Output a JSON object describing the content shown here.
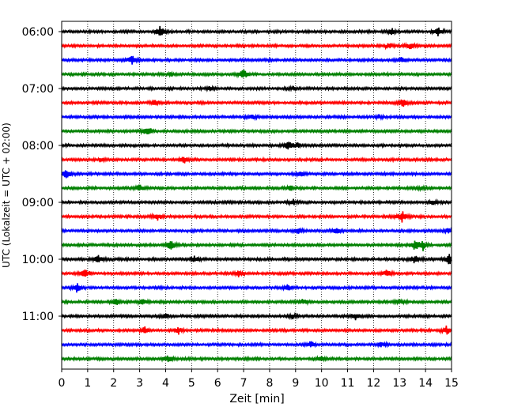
{
  "chart_data": {
    "type": "line",
    "title": "",
    "xlabel": "Zeit  [min]",
    "ylabel": "UTC (Lokalzeit = UTC + 02:00)",
    "xlim": [
      0,
      15
    ],
    "x_ticks": [
      0,
      1,
      2,
      3,
      4,
      5,
      6,
      7,
      8,
      9,
      10,
      11,
      12,
      13,
      14,
      15
    ],
    "y_tick_labels": [
      "06:00",
      "07:00",
      "08:00",
      "09:00",
      "10:00",
      "11:00"
    ],
    "grid_vertical": true,
    "grid_style": "dotted",
    "trace_interval_minutes": 15,
    "trace_color_cycle": [
      "#000000",
      "#ff0000",
      "#0000ff",
      "#008000"
    ],
    "series": [
      {
        "start": "06:00",
        "color": "#000000",
        "events": [
          [
            3.8,
            1.0
          ],
          [
            12.7,
            0.5
          ],
          [
            14.5,
            0.9
          ]
        ]
      },
      {
        "start": "06:15",
        "color": "#ff0000",
        "events": [
          [
            12.6,
            0.5
          ],
          [
            13.4,
            0.6
          ]
        ]
      },
      {
        "start": "06:30",
        "color": "#0000ff",
        "events": [
          [
            2.7,
            0.9
          ],
          [
            13.1,
            0.5
          ]
        ]
      },
      {
        "start": "06:45",
        "color": "#008000",
        "events": [
          [
            7.0,
            1.0
          ],
          [
            4.2,
            0.3
          ]
        ]
      },
      {
        "start": "07:00",
        "color": "#000000",
        "events": [
          [
            5.7,
            0.3
          ],
          [
            8.9,
            0.3
          ]
        ]
      },
      {
        "start": "07:15",
        "color": "#ff0000",
        "events": [
          [
            3.6,
            0.6
          ],
          [
            13.1,
            1.0
          ]
        ]
      },
      {
        "start": "07:30",
        "color": "#0000ff",
        "events": [
          [
            7.3,
            0.4
          ],
          [
            12.2,
            0.3
          ]
        ]
      },
      {
        "start": "07:45",
        "color": "#008000",
        "events": [
          [
            3.3,
            0.9
          ]
        ]
      },
      {
        "start": "08:00",
        "color": "#000000",
        "events": [
          [
            8.7,
            1.0
          ],
          [
            9.1,
            0.4
          ]
        ]
      },
      {
        "start": "08:15",
        "color": "#ff0000",
        "events": [
          [
            4.7,
            0.8
          ],
          [
            1.5,
            0.3
          ]
        ]
      },
      {
        "start": "08:30",
        "color": "#0000ff",
        "events": [
          [
            0.2,
            0.9
          ],
          [
            9.2,
            0.4
          ]
        ]
      },
      {
        "start": "08:45",
        "color": "#008000",
        "events": [
          [
            3.0,
            0.6
          ],
          [
            8.8,
            0.4
          ],
          [
            13.8,
            0.4
          ]
        ]
      },
      {
        "start": "09:00",
        "color": "#000000",
        "events": [
          [
            8.9,
            0.5
          ],
          [
            14.3,
            0.4
          ]
        ]
      },
      {
        "start": "09:15",
        "color": "#ff0000",
        "events": [
          [
            3.7,
            0.6
          ],
          [
            13.1,
            1.0
          ]
        ]
      },
      {
        "start": "09:30",
        "color": "#0000ff",
        "events": [
          [
            9.1,
            0.5
          ],
          [
            10.6,
            0.6
          ],
          [
            14.9,
            0.4
          ]
        ]
      },
      {
        "start": "09:45",
        "color": "#008000",
        "events": [
          [
            4.2,
            0.8
          ],
          [
            13.6,
            0.8
          ],
          [
            13.9,
            1.0
          ]
        ]
      },
      {
        "start": "10:00",
        "color": "#000000",
        "events": [
          [
            1.4,
            0.6
          ],
          [
            5.1,
            0.6
          ],
          [
            13.6,
            0.9
          ],
          [
            14.9,
            1.0
          ]
        ]
      },
      {
        "start": "10:15",
        "color": "#ff0000",
        "events": [
          [
            0.9,
            0.8
          ],
          [
            6.8,
            0.6
          ],
          [
            12.5,
            0.6
          ]
        ]
      },
      {
        "start": "10:30",
        "color": "#0000ff",
        "events": [
          [
            0.6,
            0.9
          ],
          [
            8.7,
            0.6
          ]
        ]
      },
      {
        "start": "10:45",
        "color": "#008000",
        "events": [
          [
            2.1,
            0.5
          ],
          [
            3.1,
            0.7
          ],
          [
            9.3,
            0.5
          ],
          [
            13.0,
            0.4
          ]
        ]
      },
      {
        "start": "11:00",
        "color": "#000000",
        "events": [
          [
            4.0,
            0.4
          ],
          [
            8.9,
            0.4
          ],
          [
            11.3,
            0.6
          ]
        ]
      },
      {
        "start": "11:15",
        "color": "#ff0000",
        "events": [
          [
            3.2,
            0.6
          ],
          [
            4.5,
            0.6
          ],
          [
            14.8,
            0.8
          ]
        ]
      },
      {
        "start": "11:30",
        "color": "#0000ff",
        "events": [
          [
            9.6,
            0.6
          ],
          [
            12.3,
            0.4
          ]
        ]
      },
      {
        "start": "11:45",
        "color": "#008000",
        "events": [
          [
            4.1,
            0.6
          ],
          [
            10.0,
            0.4
          ]
        ]
      }
    ]
  }
}
